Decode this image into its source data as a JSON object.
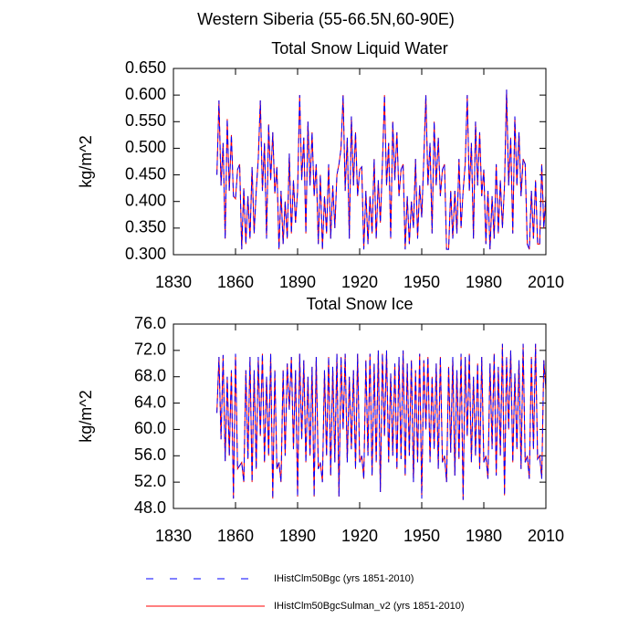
{
  "title": "Western Siberia (55-66.5N,60-90E)",
  "chart_data": [
    {
      "type": "line",
      "title": "Total Snow Liquid Water",
      "ylabel": "kg/m^2",
      "xlim": [
        1830,
        2010
      ],
      "xticks": [
        1830,
        1860,
        1890,
        1920,
        1950,
        1980,
        2010
      ],
      "ylim": [
        0.3,
        0.65
      ],
      "yticks": [
        {
          "value": 0.3,
          "label": "0.300"
        },
        {
          "value": 0.35,
          "label": "0.350"
        },
        {
          "value": 0.4,
          "label": "0.400"
        },
        {
          "value": 0.45,
          "label": "0.450"
        },
        {
          "value": 0.5,
          "label": "0.500"
        },
        {
          "value": 0.55,
          "label": "0.550"
        },
        {
          "value": 0.6,
          "label": "0.600"
        },
        {
          "value": 0.65,
          "label": "0.650"
        }
      ],
      "x": [
        1851,
        1852,
        1853,
        1854,
        1855,
        1856,
        1857,
        1858,
        1859,
        1860,
        1861,
        1862,
        1863,
        1864,
        1865,
        1866,
        1867,
        1868,
        1869,
        1870,
        1871,
        1872,
        1873,
        1874,
        1875,
        1876,
        1877,
        1878,
        1879,
        1880,
        1881,
        1882,
        1883,
        1884,
        1885,
        1886,
        1887,
        1888,
        1889,
        1890,
        1891,
        1892,
        1893,
        1894,
        1895,
        1896,
        1897,
        1898,
        1899,
        1900,
        1901,
        1902,
        1903,
        1904,
        1905,
        1906,
        1907,
        1908,
        1909,
        1910,
        1911,
        1912,
        1913,
        1914,
        1915,
        1916,
        1917,
        1918,
        1919,
        1920,
        1921,
        1922,
        1923,
        1924,
        1925,
        1926,
        1927,
        1928,
        1929,
        1930,
        1931,
        1932,
        1933,
        1934,
        1935,
        1936,
        1937,
        1938,
        1939,
        1940,
        1941,
        1942,
        1943,
        1944,
        1945,
        1946,
        1947,
        1948,
        1949,
        1950,
        1951,
        1952,
        1953,
        1954,
        1955,
        1956,
        1957,
        1958,
        1959,
        1960,
        1961,
        1962,
        1963,
        1964,
        1965,
        1966,
        1967,
        1968,
        1969,
        1970,
        1971,
        1972,
        1973,
        1974,
        1975,
        1976,
        1977,
        1978,
        1979,
        1980,
        1981,
        1982,
        1983,
        1984,
        1985,
        1986,
        1987,
        1988,
        1989,
        1990,
        1991,
        1992,
        1993,
        1994,
        1995,
        1996,
        1997,
        1998,
        1999,
        2000,
        2001,
        2002,
        2003,
        2004,
        2005,
        2006,
        2007,
        2008,
        2009,
        2010
      ],
      "series": [
        {
          "name": "IHistClm50Bgc (yrs 1851-2010)",
          "color": "#0000ff",
          "line_style": "dashed",
          "values": [
            0.45,
            0.59,
            0.43,
            0.51,
            0.33,
            0.555,
            0.42,
            0.525,
            0.41,
            0.405,
            0.46,
            0.47,
            0.31,
            0.425,
            0.32,
            0.41,
            0.33,
            0.465,
            0.34,
            0.42,
            0.48,
            0.59,
            0.42,
            0.51,
            0.33,
            0.545,
            0.44,
            0.53,
            0.415,
            0.465,
            0.31,
            0.42,
            0.32,
            0.4,
            0.33,
            0.49,
            0.34,
            0.44,
            0.36,
            0.42,
            0.6,
            0.44,
            0.52,
            0.34,
            0.55,
            0.43,
            0.53,
            0.41,
            0.47,
            0.32,
            0.45,
            0.31,
            0.41,
            0.34,
            0.47,
            0.33,
            0.43,
            0.35,
            0.45,
            0.47,
            0.5,
            0.6,
            0.42,
            0.52,
            0.33,
            0.56,
            0.43,
            0.53,
            0.41,
            0.46,
            0.465,
            0.31,
            0.42,
            0.32,
            0.41,
            0.34,
            0.48,
            0.33,
            0.44,
            0.36,
            0.47,
            0.6,
            0.43,
            0.51,
            0.33,
            0.55,
            0.44,
            0.53,
            0.41,
            0.46,
            0.47,
            0.31,
            0.41,
            0.32,
            0.4,
            0.35,
            0.48,
            0.33,
            0.43,
            0.37,
            0.48,
            0.6,
            0.43,
            0.51,
            0.34,
            0.55,
            0.43,
            0.52,
            0.41,
            0.46,
            0.47,
            0.31,
            0.31,
            0.42,
            0.33,
            0.42,
            0.34,
            0.48,
            0.35,
            0.42,
            0.47,
            0.6,
            0.42,
            0.51,
            0.33,
            0.55,
            0.43,
            0.53,
            0.41,
            0.46,
            0.32,
            0.42,
            0.31,
            0.41,
            0.33,
            0.47,
            0.34,
            0.44,
            0.35,
            0.43,
            0.61,
            0.43,
            0.52,
            0.34,
            0.56,
            0.43,
            0.53,
            0.41,
            0.48,
            0.47,
            0.32,
            0.31,
            0.42,
            0.33,
            0.44,
            0.32,
            0.32,
            0.47,
            0.35,
            0.41
          ]
        },
        {
          "name": "IHistClm50BgcSulman_v2 (yrs 1851-2010)",
          "color": "#ff0000",
          "line_style": "solid",
          "values": [
            0.45,
            0.59,
            0.43,
            0.51,
            0.33,
            0.555,
            0.42,
            0.525,
            0.41,
            0.405,
            0.46,
            0.47,
            0.31,
            0.425,
            0.32,
            0.41,
            0.33,
            0.465,
            0.34,
            0.42,
            0.48,
            0.59,
            0.42,
            0.51,
            0.33,
            0.545,
            0.44,
            0.53,
            0.415,
            0.465,
            0.31,
            0.42,
            0.32,
            0.4,
            0.33,
            0.49,
            0.34,
            0.44,
            0.36,
            0.42,
            0.6,
            0.44,
            0.52,
            0.34,
            0.55,
            0.43,
            0.53,
            0.41,
            0.47,
            0.32,
            0.45,
            0.31,
            0.41,
            0.34,
            0.47,
            0.33,
            0.43,
            0.35,
            0.45,
            0.47,
            0.5,
            0.6,
            0.42,
            0.52,
            0.33,
            0.56,
            0.43,
            0.53,
            0.41,
            0.46,
            0.465,
            0.31,
            0.42,
            0.32,
            0.41,
            0.34,
            0.48,
            0.33,
            0.44,
            0.36,
            0.47,
            0.6,
            0.43,
            0.51,
            0.33,
            0.55,
            0.44,
            0.53,
            0.41,
            0.46,
            0.47,
            0.31,
            0.41,
            0.32,
            0.4,
            0.35,
            0.48,
            0.33,
            0.43,
            0.37,
            0.48,
            0.6,
            0.43,
            0.51,
            0.34,
            0.55,
            0.43,
            0.52,
            0.41,
            0.46,
            0.47,
            0.31,
            0.31,
            0.42,
            0.33,
            0.42,
            0.34,
            0.48,
            0.35,
            0.42,
            0.47,
            0.6,
            0.42,
            0.51,
            0.33,
            0.55,
            0.43,
            0.53,
            0.41,
            0.46,
            0.32,
            0.42,
            0.31,
            0.41,
            0.33,
            0.47,
            0.34,
            0.44,
            0.35,
            0.43,
            0.61,
            0.43,
            0.52,
            0.34,
            0.56,
            0.43,
            0.53,
            0.41,
            0.48,
            0.47,
            0.32,
            0.31,
            0.42,
            0.33,
            0.44,
            0.32,
            0.32,
            0.47,
            0.35,
            0.41
          ]
        }
      ]
    },
    {
      "type": "line",
      "title": "Total Snow Ice",
      "ylabel": "kg/m^2",
      "xlim": [
        1830,
        2010
      ],
      "xticks": [
        1830,
        1860,
        1890,
        1920,
        1950,
        1980,
        2010
      ],
      "ylim": [
        48,
        76
      ],
      "yticks": [
        {
          "value": 48,
          "label": "48.0"
        },
        {
          "value": 52,
          "label": "52.0"
        },
        {
          "value": 56,
          "label": "56.0"
        },
        {
          "value": 60,
          "label": "60.0"
        },
        {
          "value": 64,
          "label": "64.0"
        },
        {
          "value": 68,
          "label": "68.0"
        },
        {
          "value": 72,
          "label": "72.0"
        },
        {
          "value": 76,
          "label": "76.0"
        }
      ],
      "x": [
        1851,
        1852,
        1853,
        1854,
        1855,
        1856,
        1857,
        1858,
        1859,
        1860,
        1861,
        1862,
        1863,
        1864,
        1865,
        1866,
        1867,
        1868,
        1869,
        1870,
        1871,
        1872,
        1873,
        1874,
        1875,
        1876,
        1877,
        1878,
        1879,
        1880,
        1881,
        1882,
        1883,
        1884,
        1885,
        1886,
        1887,
        1888,
        1889,
        1890,
        1891,
        1892,
        1893,
        1894,
        1895,
        1896,
        1897,
        1898,
        1899,
        1900,
        1901,
        1902,
        1903,
        1904,
        1905,
        1906,
        1907,
        1908,
        1909,
        1910,
        1911,
        1912,
        1913,
        1914,
        1915,
        1916,
        1917,
        1918,
        1919,
        1920,
        1921,
        1922,
        1923,
        1924,
        1925,
        1926,
        1927,
        1928,
        1929,
        1930,
        1931,
        1932,
        1933,
        1934,
        1935,
        1936,
        1937,
        1938,
        1939,
        1940,
        1941,
        1942,
        1943,
        1944,
        1945,
        1946,
        1947,
        1948,
        1949,
        1950,
        1951,
        1952,
        1953,
        1954,
        1955,
        1956,
        1957,
        1958,
        1959,
        1960,
        1961,
        1962,
        1963,
        1964,
        1965,
        1966,
        1967,
        1968,
        1969,
        1970,
        1971,
        1972,
        1973,
        1974,
        1975,
        1976,
        1977,
        1978,
        1979,
        1980,
        1981,
        1982,
        1983,
        1984,
        1985,
        1986,
        1987,
        1988,
        1989,
        1990,
        1991,
        1992,
        1993,
        1994,
        1995,
        1996,
        1997,
        1998,
        1999,
        2000,
        2001,
        2002,
        2003,
        2004,
        2005,
        2006,
        2007,
        2008,
        2009,
        2010
      ],
      "series": [
        {
          "name": "IHistClm50Bgc (yrs 1851-2010)",
          "color": "#0000ff",
          "line_style": "dashed",
          "values": [
            62.5,
            71.0,
            58.5,
            71.3,
            55.2,
            68.0,
            56.0,
            69.0,
            49.5,
            71.5,
            54.0,
            54.5,
            55.0,
            52.0,
            69.0,
            55.5,
            71.0,
            52.0,
            69.0,
            54.0,
            71.0,
            59.0,
            71.5,
            55.0,
            68.0,
            56.0,
            71.5,
            49.5,
            69.0,
            54.0,
            55.0,
            52.0,
            69.0,
            56.0,
            70.0,
            63.0,
            71.0,
            57.0,
            69.0,
            49.8,
            71.5,
            58.5,
            70.5,
            55.0,
            68.0,
            56.0,
            69.5,
            49.8,
            71.0,
            54.0,
            55.0,
            52.0,
            69.0,
            56.0,
            71.0,
            53.0,
            69.5,
            55.0,
            71.5,
            49.8,
            71.0,
            60.0,
            71.5,
            55.0,
            68.0,
            57.0,
            69.0,
            54.0,
            71.5,
            55.0,
            56.0,
            52.5,
            70.5,
            56.0,
            71.5,
            53.0,
            70.0,
            55.0,
            72.0,
            50.5,
            71.5,
            59.0,
            72.0,
            55.0,
            68.5,
            56.0,
            70.0,
            54.0,
            71.0,
            55.5,
            72.0,
            53.0,
            70.0,
            56.0,
            70.5,
            52.0,
            69.0,
            55.0,
            71.5,
            49.5,
            70.5,
            60.0,
            71.0,
            55.0,
            68.0,
            57.0,
            70.0,
            54.0,
            71.0,
            55.0,
            56.0,
            52.0,
            69.5,
            56.5,
            71.0,
            53.0,
            69.0,
            55.5,
            71.5,
            49.3,
            71.0,
            59.0,
            71.5,
            55.0,
            68.0,
            56.0,
            70.0,
            54.0,
            71.0,
            55.0,
            56.0,
            52.5,
            70.0,
            57.0,
            71.5,
            53.0,
            69.5,
            56.0,
            73.0,
            50.0,
            71.0,
            60.0,
            72.0,
            55.0,
            68.5,
            57.0,
            70.5,
            54.0,
            73.0,
            55.0,
            56.0,
            52.5,
            71.0,
            57.0,
            73.0,
            55.5,
            56.0,
            52.5,
            70.5,
            66.0
          ]
        },
        {
          "name": "IHistClm50BgcSulman_v2 (yrs 1851-2010)",
          "color": "#ff0000",
          "line_style": "solid",
          "values": [
            62.5,
            71.0,
            58.5,
            71.3,
            55.2,
            68.0,
            56.0,
            69.0,
            49.5,
            71.5,
            54.0,
            54.5,
            55.0,
            52.0,
            69.0,
            55.5,
            71.0,
            52.0,
            69.0,
            54.0,
            71.0,
            59.0,
            71.5,
            55.0,
            68.0,
            56.0,
            71.5,
            49.5,
            69.0,
            54.0,
            55.0,
            52.0,
            69.0,
            56.0,
            70.0,
            63.0,
            71.0,
            57.0,
            69.0,
            49.8,
            71.5,
            58.5,
            70.5,
            55.0,
            68.0,
            56.0,
            69.5,
            49.8,
            71.0,
            54.0,
            55.0,
            52.0,
            69.0,
            56.0,
            71.0,
            53.0,
            69.5,
            55.0,
            71.5,
            49.8,
            71.0,
            60.0,
            71.5,
            55.0,
            68.0,
            57.0,
            69.0,
            54.0,
            71.5,
            55.0,
            56.0,
            52.5,
            70.5,
            56.0,
            71.5,
            53.0,
            70.0,
            55.0,
            72.0,
            50.5,
            71.5,
            59.0,
            72.0,
            55.0,
            68.5,
            56.0,
            70.0,
            54.0,
            71.0,
            55.5,
            72.0,
            53.0,
            70.0,
            56.0,
            70.5,
            52.0,
            69.0,
            55.0,
            71.5,
            49.5,
            70.5,
            60.0,
            71.0,
            55.0,
            68.0,
            57.0,
            70.0,
            54.0,
            71.0,
            55.0,
            56.0,
            52.0,
            69.5,
            56.5,
            71.0,
            53.0,
            69.0,
            55.5,
            71.5,
            49.3,
            71.0,
            59.0,
            71.5,
            55.0,
            68.0,
            56.0,
            70.0,
            54.0,
            71.0,
            55.0,
            56.0,
            52.5,
            70.0,
            57.0,
            71.5,
            53.0,
            69.5,
            56.0,
            73.0,
            50.0,
            71.0,
            60.0,
            72.0,
            55.0,
            68.5,
            57.0,
            70.5,
            54.0,
            73.0,
            55.0,
            56.0,
            52.5,
            71.0,
            57.0,
            73.0,
            55.5,
            56.0,
            52.5,
            70.5,
            66.0
          ]
        }
      ]
    }
  ]
}
